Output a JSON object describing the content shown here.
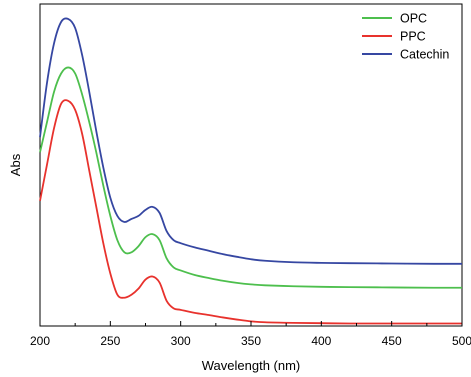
{
  "chart_data": {
    "type": "line",
    "title": "",
    "xlabel": "Wavelength (nm)",
    "ylabel": "Abs",
    "xlim": [
      200,
      500
    ],
    "ylim": [
      0,
      1
    ],
    "x_ticks": [
      200,
      250,
      300,
      350,
      400,
      450,
      500
    ],
    "y_ticks_shown": false,
    "grid": false,
    "legend_position": "top-right",
    "x": [
      200,
      205,
      210,
      215,
      220,
      225,
      230,
      235,
      240,
      245,
      250,
      255,
      260,
      265,
      270,
      275,
      280,
      285,
      290,
      295,
      300,
      310,
      320,
      330,
      340,
      350,
      360,
      380,
      400,
      420,
      450,
      480,
      500
    ],
    "series": [
      {
        "name": "OPC",
        "color": "#4dbf4d",
        "values": [
          0.57,
          0.67,
          0.77,
          0.83,
          0.85,
          0.83,
          0.76,
          0.67,
          0.57,
          0.46,
          0.36,
          0.28,
          0.24,
          0.24,
          0.26,
          0.29,
          0.3,
          0.28,
          0.22,
          0.19,
          0.18,
          0.165,
          0.155,
          0.146,
          0.139,
          0.134,
          0.131,
          0.128,
          0.126,
          0.125,
          0.124,
          0.123,
          0.123
        ]
      },
      {
        "name": "PPC",
        "color": "#e8322d",
        "values": [
          0.41,
          0.53,
          0.65,
          0.73,
          0.74,
          0.71,
          0.63,
          0.51,
          0.39,
          0.27,
          0.17,
          0.1,
          0.09,
          0.1,
          0.12,
          0.15,
          0.16,
          0.14,
          0.08,
          0.055,
          0.05,
          0.04,
          0.033,
          0.025,
          0.018,
          0.012,
          0.009,
          0.007,
          0.006,
          0.005,
          0.005,
          0.005,
          0.005
        ]
      },
      {
        "name": "Catechin",
        "color": "#3647a2",
        "values": [
          0.62,
          0.8,
          0.93,
          1.0,
          1.01,
          0.98,
          0.89,
          0.77,
          0.64,
          0.52,
          0.42,
          0.36,
          0.34,
          0.35,
          0.36,
          0.38,
          0.39,
          0.37,
          0.31,
          0.28,
          0.27,
          0.256,
          0.245,
          0.234,
          0.225,
          0.217,
          0.212,
          0.207,
          0.205,
          0.204,
          0.203,
          0.202,
          0.202
        ]
      }
    ]
  }
}
